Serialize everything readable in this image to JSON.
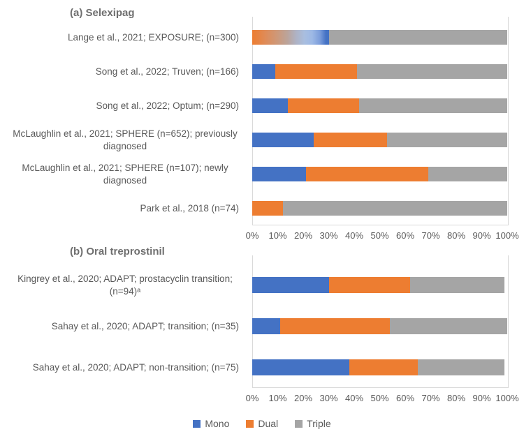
{
  "colors": {
    "mono": "#4472C4",
    "dual": "#ED7D31",
    "triple": "#A5A5A5",
    "axis_line": "#D9D9D9",
    "text": "#595959",
    "title_text": "#6F6F6F"
  },
  "legend": {
    "entries": [
      {
        "label": "Mono",
        "color": "#4472C4"
      },
      {
        "label": "Dual",
        "color": "#ED7D31"
      },
      {
        "label": "Triple",
        "color": "#A5A5A5"
      }
    ]
  },
  "chart_data": [
    {
      "type": "bar",
      "orientation": "horizontal",
      "stacked": true,
      "title": "(a) Selexipag",
      "xlim": [
        0,
        100
      ],
      "x_unit": "percent",
      "grid": "off",
      "x_ticks": [
        "0%",
        "10%",
        "20%",
        "30%",
        "40%",
        "50%",
        "60%",
        "70%",
        "80%",
        "90%",
        "100%"
      ],
      "series_names": [
        "Mono",
        "Dual",
        "Triple"
      ],
      "rows": [
        {
          "label": "Lange et al., 2021; EXPOSURE; (n=300)",
          "segments": [
            {
              "series": "Mono+Dual gradient",
              "value": 30
            },
            {
              "series": "Triple",
              "value": 70
            }
          ]
        },
        {
          "label": "Song et al., 2022; Truven; (n=166)",
          "segments": [
            {
              "series": "Mono",
              "value": 9
            },
            {
              "series": "Dual",
              "value": 32
            },
            {
              "series": "Triple",
              "value": 59
            }
          ]
        },
        {
          "label": "Song et al., 2022; Optum; (n=290)",
          "segments": [
            {
              "series": "Mono",
              "value": 14
            },
            {
              "series": "Dual",
              "value": 28
            },
            {
              "series": "Triple",
              "value": 58
            }
          ]
        },
        {
          "label": "McLaughlin et al., 2021; SPHERE (n=652); previously diagnosed",
          "segments": [
            {
              "series": "Mono",
              "value": 24
            },
            {
              "series": "Dual",
              "value": 29
            },
            {
              "series": "Triple",
              "value": 47
            }
          ]
        },
        {
          "label": "McLaughlin et al., 2021; SPHERE (n=107); newly diagnosed",
          "segments": [
            {
              "series": "Mono",
              "value": 21
            },
            {
              "series": "Dual",
              "value": 48
            },
            {
              "series": "Triple",
              "value": 31
            }
          ]
        },
        {
          "label": "Park et al., 2018 (n=74)",
          "segments": [
            {
              "series": "Dual",
              "value": 12
            },
            {
              "series": "Triple",
              "value": 88
            }
          ]
        }
      ]
    },
    {
      "type": "bar",
      "orientation": "horizontal",
      "stacked": true,
      "title": "(b) Oral treprostinil",
      "xlim": [
        0,
        100
      ],
      "x_unit": "percent",
      "grid": "off",
      "x_ticks": [
        "0%",
        "10%",
        "20%",
        "30%",
        "40%",
        "50%",
        "60%",
        "70%",
        "80%",
        "90%",
        "100%"
      ],
      "series_names": [
        "Mono",
        "Dual",
        "Triple"
      ],
      "rows": [
        {
          "label": "Kingrey et al., 2020; ADAPT; prostacyclin transition; (n=94)ᵃ",
          "segments": [
            {
              "series": "Mono",
              "value": 30
            },
            {
              "series": "Dual",
              "value": 32
            },
            {
              "series": "Triple",
              "value": 37
            }
          ]
        },
        {
          "label": "Sahay et al., 2020; ADAPT; transition; (n=35)",
          "segments": [
            {
              "series": "Mono",
              "value": 11
            },
            {
              "series": "Dual",
              "value": 43
            },
            {
              "series": "Triple",
              "value": 46
            }
          ]
        },
        {
          "label": "Sahay et al., 2020; ADAPT; non-transition; (n=75)",
          "segments": [
            {
              "series": "Mono",
              "value": 38
            },
            {
              "series": "Dual",
              "value": 27
            },
            {
              "series": "Triple",
              "value": 34
            }
          ]
        }
      ]
    }
  ]
}
